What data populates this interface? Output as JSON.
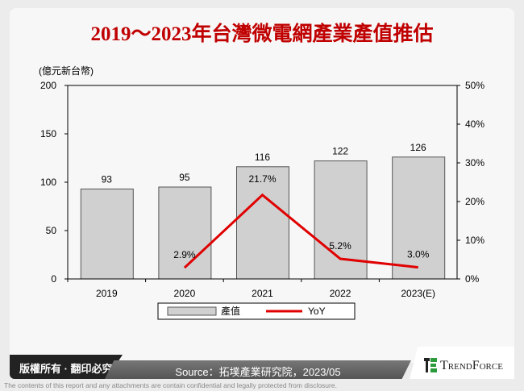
{
  "title": "2019～2023年台灣微電網產業產值推估",
  "chart_data": {
    "type": "bar+line",
    "title": "2019～2023年台灣微電網產業產值推估",
    "ylabel": "(億元新台幣)",
    "categories": [
      "2019",
      "2020",
      "2021",
      "2022",
      "2023(E)"
    ],
    "ylim": [
      0,
      200
    ],
    "y_ticks": [
      "0",
      "50",
      "100",
      "150",
      "200"
    ],
    "y2lim": [
      0,
      50
    ],
    "y2_ticks": [
      "0%",
      "10%",
      "20%",
      "30%",
      "40%",
      "50%"
    ],
    "series": [
      {
        "name": "產值",
        "type": "bar",
        "color": "#d0d0d0",
        "values": [
          93,
          95,
          116,
          122,
          126
        ],
        "labels": [
          "93",
          "95",
          "116",
          "122",
          "126"
        ]
      },
      {
        "name": "YoY",
        "type": "line",
        "color": "#e00000",
        "axis": "right",
        "values": [
          null,
          2.9,
          21.7,
          5.2,
          3.0
        ],
        "labels": [
          "",
          "2.9%",
          "21.7%",
          "5.2%",
          "3.0%"
        ]
      }
    ],
    "legend": "bottom",
    "grid": false
  },
  "footer": {
    "rights": "版權所有 · 翻印必究",
    "source": "Source：拓墣產業研究院，2023/05",
    "brand": "TrendForce",
    "disclaimer": "The contents of this report and any attachments are contain confidential and legally protected from disclosure."
  }
}
